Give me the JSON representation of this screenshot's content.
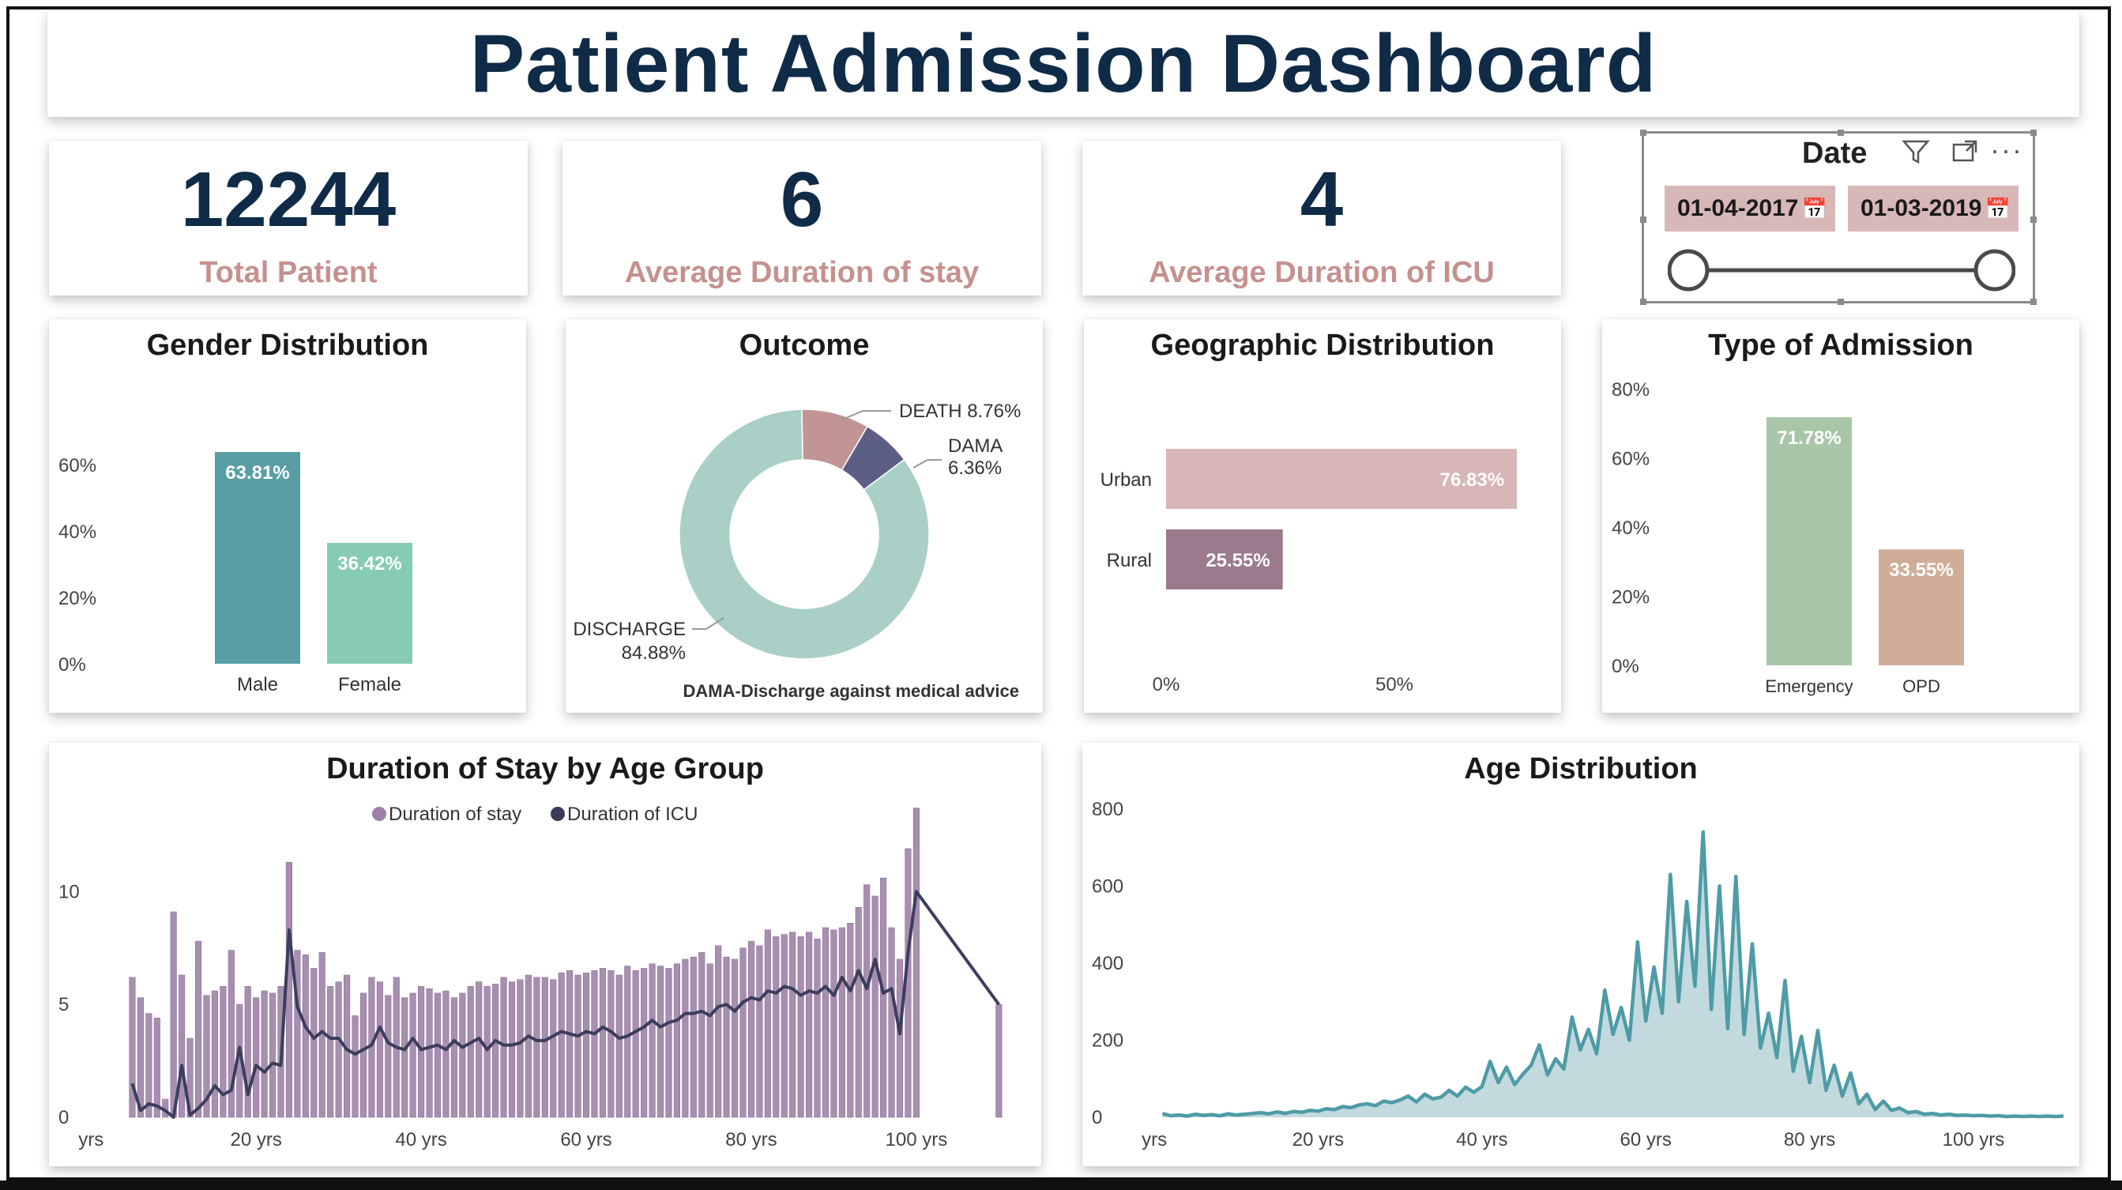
{
  "title": "Patient Admission Dashboard",
  "kpis": [
    {
      "value": "12244",
      "label": "Total Patient"
    },
    {
      "value": "6",
      "label": "Average Duration of stay"
    },
    {
      "value": "4",
      "label": "Average Duration of ICU"
    }
  ],
  "slicer": {
    "title": "Date",
    "start": "01-04-2017",
    "end": "01-03-2019",
    "icons": [
      "filter-icon",
      "focus-mode-icon",
      "more-options-icon"
    ],
    "range_fraction": [
      0,
      1
    ]
  },
  "chart_data": [
    {
      "id": "gender",
      "type": "bar",
      "title": "Gender Distribution",
      "categories": [
        "Male",
        "Female"
      ],
      "values": [
        63.81,
        36.42
      ],
      "data_labels": [
        "63.81%",
        "36.42%"
      ],
      "colors": [
        "#5a9ea5",
        "#86cbb5"
      ],
      "yticks": [
        "0%",
        "20%",
        "40%",
        "60%"
      ],
      "ylim": [
        0,
        70
      ]
    },
    {
      "id": "outcome",
      "type": "pie",
      "title": "Outcome",
      "labels": [
        "DISCHARGE",
        "DEATH",
        "DAMA"
      ],
      "values": [
        84.88,
        8.76,
        6.36
      ],
      "data_labels": [
        "84.88%",
        "8.76%",
        "6.36%"
      ],
      "colors": [
        "#a9cfc6",
        "#c09594",
        "#5b5f86"
      ],
      "footnote": "DAMA-Discharge against medical advice"
    },
    {
      "id": "geo",
      "type": "bar",
      "orientation": "horizontal",
      "title": "Geographic Distribution",
      "categories": [
        "Urban",
        "Rural"
      ],
      "values": [
        76.83,
        25.55
      ],
      "data_labels": [
        "76.83%",
        "25.55%"
      ],
      "colors": [
        "#d8b6b6",
        "#9a7a8c"
      ],
      "xticks": [
        "0%",
        "50%"
      ],
      "xlim": [
        0,
        100
      ]
    },
    {
      "id": "admission",
      "type": "bar",
      "title": "Type of Admission",
      "categories": [
        "Emergency",
        "OPD"
      ],
      "values": [
        71.78,
        33.55
      ],
      "data_labels": [
        "71.78%",
        "33.55%"
      ],
      "colors": [
        "#a9c6a8",
        "#d0ad98"
      ],
      "yticks": [
        "0%",
        "20%",
        "40%",
        "60%",
        "80%"
      ],
      "ylim": [
        0,
        80
      ]
    },
    {
      "id": "stay_age",
      "type": "bar",
      "title": "Duration of Stay by Age Group",
      "legend": [
        "Duration of stay",
        "Duration of ICU"
      ],
      "legend_colors": [
        "#9e82a8",
        "#3a3a5a"
      ],
      "xticks": [
        "yrs",
        "20 yrs",
        "40 yrs",
        "60 yrs",
        "80 yrs",
        "100 yrs"
      ],
      "xtick_values": [
        0,
        20,
        40,
        60,
        80,
        100
      ],
      "yticks": [
        "0",
        "5",
        "10"
      ],
      "ytick_values": [
        0,
        5,
        10
      ],
      "ylim": [
        0,
        14
      ],
      "xlim": [
        -0.5,
        111.5
      ],
      "series": [
        {
          "name": "Duration of stay",
          "x": [
            5,
            6,
            7,
            8,
            9,
            10,
            11,
            12,
            13,
            14,
            15,
            16,
            17,
            18,
            19,
            20,
            21,
            22,
            23,
            24,
            25,
            26,
            27,
            28,
            29,
            30,
            31,
            32,
            33,
            34,
            35,
            36,
            37,
            38,
            39,
            40,
            41,
            42,
            43,
            44,
            45,
            46,
            47,
            48,
            49,
            50,
            51,
            52,
            53,
            54,
            55,
            56,
            57,
            58,
            59,
            60,
            61,
            62,
            63,
            64,
            65,
            66,
            67,
            68,
            69,
            70,
            71,
            72,
            73,
            74,
            75,
            76,
            77,
            78,
            79,
            80,
            81,
            82,
            83,
            84,
            85,
            86,
            87,
            88,
            89,
            90,
            91,
            92,
            93,
            94,
            95,
            96,
            97,
            98,
            99,
            100,
            110
          ],
          "values": [
            6.2,
            5.3,
            4.6,
            4.4,
            0.8,
            9.1,
            6.3,
            3.5,
            7.8,
            5.4,
            5.6,
            5.8,
            7.4,
            5.0,
            5.8,
            5.3,
            5.6,
            5.5,
            5.8,
            11.3,
            7.4,
            7.2,
            6.6,
            7.3,
            5.8,
            6.0,
            6.3,
            4.5,
            5.5,
            6.2,
            6.0,
            5.4,
            6.2,
            5.3,
            5.5,
            5.8,
            5.7,
            5.5,
            5.6,
            5.3,
            5.5,
            5.8,
            6.0,
            5.8,
            5.9,
            6.2,
            6.0,
            6.1,
            6.3,
            6.2,
            6.2,
            6.1,
            6.4,
            6.5,
            6.3,
            6.4,
            6.5,
            6.6,
            6.5,
            6.3,
            6.7,
            6.5,
            6.6,
            6.8,
            6.7,
            6.6,
            6.8,
            7.0,
            7.1,
            7.3,
            6.8,
            7.6,
            7.1,
            7.0,
            7.5,
            7.8,
            7.6,
            8.3,
            8.0,
            8.1,
            8.2,
            8.0,
            8.2,
            7.9,
            8.4,
            8.3,
            8.4,
            8.6,
            9.3,
            10.3,
            9.8,
            10.6,
            8.4,
            7.0,
            11.9,
            13.7,
            5.0
          ]
        },
        {
          "name": "Duration of ICU",
          "x": [
            5,
            6,
            7,
            8,
            9,
            10,
            11,
            12,
            13,
            14,
            15,
            16,
            17,
            18,
            19,
            20,
            21,
            22,
            23,
            24,
            25,
            26,
            27,
            28,
            29,
            30,
            31,
            32,
            33,
            34,
            35,
            36,
            37,
            38,
            39,
            40,
            41,
            42,
            43,
            44,
            45,
            46,
            47,
            48,
            49,
            50,
            51,
            52,
            53,
            54,
            55,
            56,
            57,
            58,
            59,
            60,
            61,
            62,
            63,
            64,
            65,
            66,
            67,
            68,
            69,
            70,
            71,
            72,
            73,
            74,
            75,
            76,
            77,
            78,
            79,
            80,
            81,
            82,
            83,
            84,
            85,
            86,
            87,
            88,
            89,
            90,
            91,
            92,
            93,
            94,
            95,
            96,
            97,
            98,
            99,
            100,
            110
          ],
          "values": [
            1.5,
            0.3,
            0.6,
            0.5,
            0.3,
            0.0,
            2.3,
            0.1,
            0.4,
            0.8,
            1.4,
            1.0,
            1.2,
            3.1,
            1.0,
            2.3,
            2.0,
            2.4,
            2.3,
            8.3,
            4.9,
            4.0,
            3.5,
            3.8,
            3.5,
            3.5,
            3.0,
            2.8,
            3.0,
            3.2,
            4.0,
            3.3,
            3.1,
            3.0,
            3.5,
            3.0,
            3.1,
            3.2,
            3.0,
            3.4,
            3.1,
            3.3,
            3.5,
            3.0,
            3.4,
            3.2,
            3.2,
            3.3,
            3.6,
            3.4,
            3.4,
            3.6,
            3.8,
            3.7,
            3.6,
            3.8,
            3.7,
            4.0,
            3.8,
            3.5,
            3.6,
            3.8,
            4.0,
            4.3,
            4.0,
            4.2,
            4.3,
            4.6,
            4.6,
            4.7,
            4.5,
            4.9,
            5.0,
            4.7,
            5.1,
            5.3,
            5.2,
            5.6,
            5.5,
            5.8,
            5.7,
            5.4,
            5.6,
            5.5,
            5.8,
            5.4,
            6.2,
            5.6,
            6.5,
            5.7,
            7.0,
            5.5,
            5.7,
            3.7,
            7.3,
            10.0,
            5.0
          ]
        }
      ]
    },
    {
      "id": "age_dist",
      "type": "area",
      "title": "Age Distribution",
      "xticks": [
        "yrs",
        "20 yrs",
        "40 yrs",
        "60 yrs",
        "80 yrs",
        "100 yrs"
      ],
      "xtick_values": [
        0,
        20,
        40,
        60,
        80,
        100
      ],
      "yticks": [
        "0",
        "200",
        "400",
        "600",
        "800"
      ],
      "ytick_values": [
        0,
        200,
        400,
        600,
        800
      ],
      "ylim": [
        0,
        820
      ],
      "xlim": [
        -3,
        111
      ],
      "color": "#4e9ba6",
      "fill": "#b7d4d8",
      "x": [
        1,
        2,
        3,
        4,
        5,
        6,
        7,
        8,
        9,
        10,
        11,
        12,
        13,
        14,
        15,
        16,
        17,
        18,
        19,
        20,
        21,
        22,
        23,
        24,
        25,
        26,
        27,
        28,
        29,
        30,
        31,
        32,
        33,
        34,
        35,
        36,
        37,
        38,
        39,
        40,
        41,
        42,
        43,
        44,
        45,
        46,
        47,
        48,
        49,
        50,
        51,
        52,
        53,
        54,
        55,
        56,
        57,
        58,
        59,
        60,
        61,
        62,
        63,
        64,
        65,
        66,
        67,
        68,
        69,
        70,
        71,
        72,
        73,
        74,
        75,
        76,
        77,
        78,
        79,
        80,
        81,
        82,
        83,
        84,
        85,
        86,
        87,
        88,
        89,
        90,
        91,
        92,
        93,
        94,
        95,
        96,
        97,
        98,
        99,
        100,
        101,
        102,
        103,
        104,
        105,
        106,
        107,
        108,
        109,
        110,
        111
      ],
      "values": [
        10,
        4,
        6,
        3,
        8,
        5,
        7,
        4,
        9,
        6,
        8,
        10,
        12,
        9,
        14,
        10,
        15,
        13,
        18,
        16,
        22,
        20,
        28,
        25,
        32,
        35,
        30,
        42,
        38,
        45,
        55,
        40,
        60,
        48,
        52,
        70,
        55,
        78,
        65,
        80,
        145,
        90,
        130,
        85,
        112,
        135,
        188,
        110,
        152,
        125,
        260,
        175,
        228,
        165,
        330,
        215,
        285,
        200,
        455,
        250,
        390,
        270,
        630,
        300,
        560,
        340,
        740,
        280,
        600,
        230,
        625,
        215,
        450,
        180,
        270,
        155,
        355,
        120,
        210,
        90,
        225,
        70,
        135,
        55,
        115,
        35,
        60,
        20,
        42,
        18,
        24,
        12,
        15,
        8,
        10,
        6,
        8,
        5,
        6,
        4,
        5,
        3,
        4,
        2,
        3,
        2,
        3,
        2,
        3,
        2,
        3
      ]
    }
  ]
}
